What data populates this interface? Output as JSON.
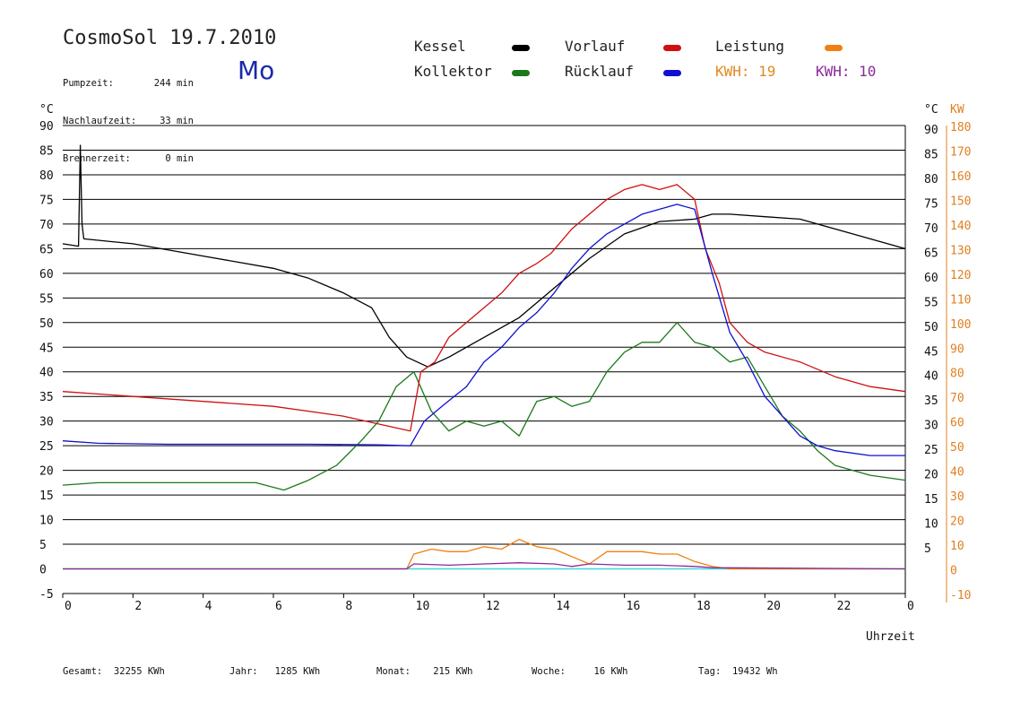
{
  "header": {
    "title": "CosmoSol 19.7.2010",
    "day": "Mo",
    "stats": [
      {
        "label": "Pumpzeit:",
        "value": "244 min"
      },
      {
        "label": "Nachlaufzeit:",
        "value": "33 min"
      },
      {
        "label": "Brennerzeit:",
        "value": "0 min"
      }
    ]
  },
  "legend": {
    "kessel": "Kessel",
    "kollektor": "Kollektor",
    "vorlauf": "Vorlauf",
    "ruecklauf": "Rücklauf",
    "leistung": "Leistung",
    "kwh1_label": "KWH:",
    "kwh1_value": "19",
    "kwh2_label": "KWH:",
    "kwh2_value": "10"
  },
  "colors": {
    "kessel": "#000000",
    "kollektor": "#1a7a1a",
    "vorlauf": "#d01010",
    "ruecklauf": "#1010d0",
    "leistung": "#f08010",
    "kwh2": "#8a2a9a",
    "baseline": "#40d8d8",
    "kw_axis": "#e08020"
  },
  "footer": {
    "gesamt_label": "Gesamt:",
    "gesamt_value": "32255 KWh",
    "jahr_label": "Jahr:",
    "jahr_value": "1285 KWh",
    "monat_label": "Monat:",
    "monat_value": "215 KWh",
    "woche_label": "Woche:",
    "woche_value": "16 KWh",
    "tag_label": "Tag:",
    "tag_value": "19432 Wh"
  },
  "chart_data": {
    "type": "line",
    "xlabel": "Uhrzeit",
    "ylabel_left": "°C",
    "ylabel_right": "°C",
    "ylabel_right2": "KW",
    "xlim": [
      0,
      24
    ],
    "ylim": [
      -5,
      90
    ],
    "y2lim": [
      -10,
      180
    ],
    "x_ticks": [
      "0",
      "2",
      "4",
      "6",
      "8",
      "10",
      "12",
      "14",
      "16",
      "18",
      "20",
      "22",
      "0"
    ],
    "y_ticks_left": [
      90,
      85,
      80,
      75,
      70,
      65,
      60,
      55,
      50,
      45,
      40,
      35,
      30,
      25,
      20,
      15,
      10,
      5,
      0,
      -5
    ],
    "y_ticks_right": [
      90,
      85,
      80,
      75,
      70,
      65,
      60,
      55,
      50,
      45,
      40,
      35,
      30,
      25,
      20,
      15,
      10,
      5
    ],
    "y2_ticks": [
      180,
      170,
      160,
      150,
      140,
      130,
      120,
      110,
      100,
      90,
      80,
      70,
      60,
      50,
      40,
      30,
      20,
      10,
      0,
      -10
    ],
    "grid": true,
    "series": [
      {
        "name": "Kessel",
        "x": [
          0,
          0.45,
          0.5,
          0.55,
          0.6,
          2,
          4,
          6,
          7,
          8,
          8.8,
          9.3,
          9.8,
          10.4,
          11,
          12,
          13,
          14,
          15,
          16,
          17,
          18,
          18.5,
          19,
          20,
          21,
          22,
          23,
          24
        ],
        "y": [
          66,
          65.5,
          86,
          70,
          67,
          66,
          63.5,
          61,
          59,
          56,
          53,
          47,
          43,
          41,
          43,
          47,
          51,
          57,
          63,
          68,
          70.5,
          71,
          72,
          72,
          71.5,
          71,
          69,
          67,
          65
        ]
      },
      {
        "name": "Kollektor",
        "x": [
          0,
          1,
          3,
          5.5,
          6.3,
          7,
          7.8,
          8.5,
          9,
          9.5,
          10,
          10.5,
          11,
          11.5,
          12,
          12.5,
          13,
          13.5,
          14,
          14.5,
          15,
          15.5,
          16,
          16.5,
          17,
          17.5,
          18,
          18.5,
          19,
          19.5,
          20,
          20.5,
          21,
          21.5,
          22,
          23,
          24
        ],
        "y": [
          17,
          17.5,
          17.5,
          17.5,
          16,
          18,
          21,
          26,
          30,
          37,
          40,
          32,
          28,
          30,
          29,
          30,
          27,
          34,
          35,
          33,
          34,
          40,
          44,
          46,
          46,
          50,
          46,
          45,
          42,
          43,
          37,
          31,
          28,
          24,
          21,
          19,
          18
        ]
      },
      {
        "name": "Vorlauf",
        "x": [
          0,
          2,
          4,
          6,
          8,
          9.9,
          10.2,
          10.6,
          11,
          11.5,
          12,
          12.5,
          13,
          13.5,
          13.9,
          14.5,
          15,
          15.5,
          16,
          16.5,
          17,
          17.5,
          18,
          18.3,
          18.7,
          19,
          19.5,
          20,
          21,
          22,
          23,
          24
        ],
        "y": [
          36,
          35,
          34,
          33,
          31,
          28,
          40,
          42,
          47,
          50,
          53,
          56,
          60,
          62,
          64,
          69,
          72,
          75,
          77,
          78,
          77,
          78,
          75,
          65,
          58,
          50,
          46,
          44,
          42,
          39,
          37,
          36
        ]
      },
      {
        "name": "Rücklauf",
        "x": [
          0,
          1,
          3,
          5,
          7,
          9,
          9.9,
          10.3,
          10.8,
          11.5,
          12,
          12.5,
          13,
          13.5,
          14,
          14.5,
          15,
          15.5,
          16,
          16.5,
          17,
          17.5,
          18,
          18.5,
          19,
          19.5,
          20,
          20.5,
          21,
          21.5,
          22,
          23,
          24
        ],
        "y": [
          26,
          25.5,
          25.3,
          25.3,
          25.3,
          25.2,
          25,
          30,
          33,
          37,
          42,
          45,
          49,
          52,
          56,
          61,
          65,
          68,
          70,
          72,
          73,
          74,
          73,
          60,
          48,
          42,
          35,
          31,
          27,
          25,
          24,
          23,
          23
        ]
      },
      {
        "name": "Leistung",
        "x": [
          0,
          9.8,
          10,
          10.5,
          11,
          11.5,
          12,
          12.5,
          13,
          13.5,
          14,
          14.5,
          15,
          15.5,
          16,
          16.5,
          17,
          17.5,
          18,
          18.5,
          19,
          24
        ],
        "y2": [
          0,
          0,
          6,
          8,
          7,
          7,
          9,
          8,
          12,
          9,
          8,
          5,
          2,
          7,
          7,
          7,
          6,
          6,
          3,
          1,
          0,
          0
        ]
      },
      {
        "name": "KWH 10",
        "x": [
          0,
          9.8,
          10,
          11,
          12,
          13,
          14,
          14.5,
          15,
          16,
          17,
          18,
          18.5,
          24
        ],
        "y2": [
          0,
          0,
          2,
          1.5,
          2,
          2.5,
          2,
          1,
          2,
          1.5,
          1.5,
          1,
          0.5,
          0
        ]
      }
    ]
  }
}
